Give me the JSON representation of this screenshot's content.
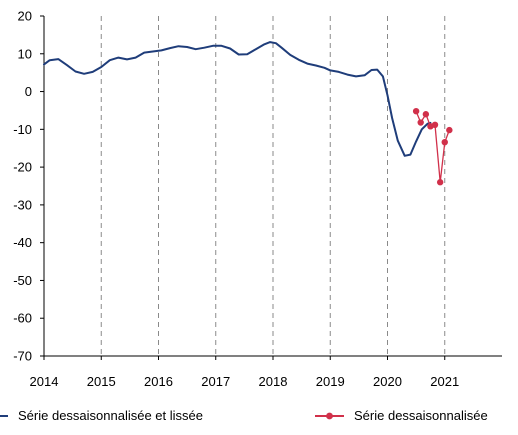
{
  "chart_data": {
    "type": "line",
    "title": "",
    "xlabel": "",
    "ylabel": "",
    "xlim": [
      2014,
      2022
    ],
    "ylim": [
      -70,
      20
    ],
    "x_ticks": [
      "2014",
      "2015",
      "2016",
      "2017",
      "2018",
      "2019",
      "2020",
      "2021"
    ],
    "y_ticks": [
      "20",
      "10",
      "0",
      "-10",
      "-20",
      "-30",
      "-40",
      "-50",
      "-60",
      "-70"
    ],
    "grid": {
      "x": "dashed vertical at each year",
      "y": false
    },
    "legend_position": "bottom",
    "series": [
      {
        "name": "Série dessaisonnalisée et lissée",
        "color": "#1f3d7a",
        "marker": "none",
        "points": [
          [
            2014.0,
            7.2
          ],
          [
            2014.1,
            8.3
          ],
          [
            2014.25,
            8.6
          ],
          [
            2014.4,
            7.0
          ],
          [
            2014.55,
            5.3
          ],
          [
            2014.7,
            4.7
          ],
          [
            2014.85,
            5.2
          ],
          [
            2015.0,
            6.5
          ],
          [
            2015.15,
            8.3
          ],
          [
            2015.3,
            9.0
          ],
          [
            2015.45,
            8.5
          ],
          [
            2015.6,
            9.0
          ],
          [
            2015.75,
            10.3
          ],
          [
            2015.9,
            10.6
          ],
          [
            2016.05,
            10.9
          ],
          [
            2016.2,
            11.5
          ],
          [
            2016.35,
            12.0
          ],
          [
            2016.5,
            11.8
          ],
          [
            2016.65,
            11.2
          ],
          [
            2016.8,
            11.6
          ],
          [
            2016.95,
            12.1
          ],
          [
            2017.1,
            12.1
          ],
          [
            2017.25,
            11.4
          ],
          [
            2017.4,
            9.8
          ],
          [
            2017.55,
            9.9
          ],
          [
            2017.7,
            11.2
          ],
          [
            2017.85,
            12.5
          ],
          [
            2017.95,
            13.1
          ],
          [
            2018.05,
            12.8
          ],
          [
            2018.15,
            11.6
          ],
          [
            2018.3,
            9.7
          ],
          [
            2018.45,
            8.4
          ],
          [
            2018.6,
            7.4
          ],
          [
            2018.75,
            6.9
          ],
          [
            2018.9,
            6.3
          ],
          [
            2019.0,
            5.6
          ],
          [
            2019.15,
            5.2
          ],
          [
            2019.3,
            4.5
          ],
          [
            2019.45,
            4.0
          ],
          [
            2019.6,
            4.3
          ],
          [
            2019.72,
            5.7
          ],
          [
            2019.82,
            5.8
          ],
          [
            2019.92,
            4.0
          ],
          [
            2020.0,
            -1.0
          ],
          [
            2020.08,
            -7.0
          ],
          [
            2020.18,
            -13.0
          ],
          [
            2020.3,
            -17.0
          ],
          [
            2020.4,
            -16.7
          ],
          [
            2020.5,
            -13.2
          ],
          [
            2020.6,
            -10.0
          ],
          [
            2020.7,
            -8.5
          ],
          [
            2020.75,
            -8.3
          ]
        ]
      },
      {
        "name": "Série dessaisonnalisée",
        "color": "#d1304a",
        "marker": "circle",
        "points": [
          [
            2020.5,
            -5.2
          ],
          [
            2020.58,
            -8.2
          ],
          [
            2020.67,
            -6.0
          ],
          [
            2020.75,
            -9.2
          ],
          [
            2020.83,
            -8.8
          ],
          [
            2020.92,
            -24.0
          ],
          [
            2021.0,
            -13.4
          ],
          [
            2021.08,
            -10.2
          ]
        ]
      }
    ]
  }
}
